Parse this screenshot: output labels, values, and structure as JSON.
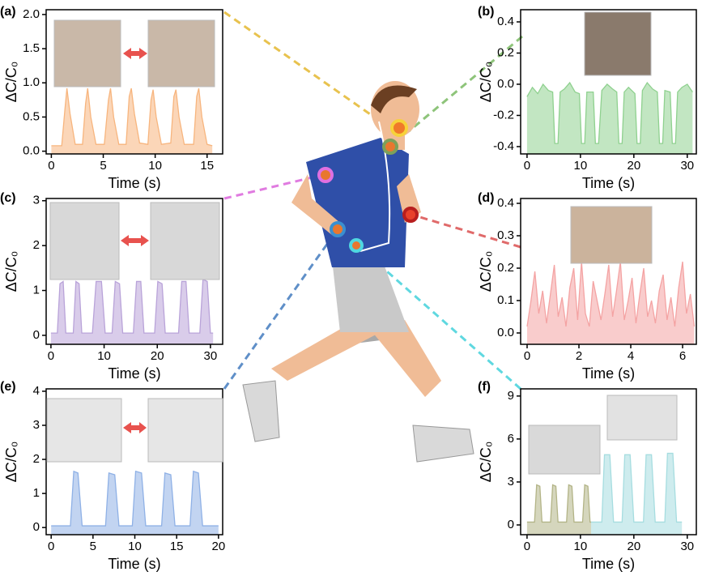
{
  "chart_data": [
    {
      "type": "area",
      "label": "(a)",
      "xlabel": "Time (s)",
      "ylabel": "ΔC/C₀",
      "color": "#f7b57e",
      "x": [
        0,
        1.0,
        1.3,
        1.5,
        1.8,
        2.3,
        3.0,
        3.3,
        3.5,
        3.8,
        4.3,
        5.1,
        5.5,
        5.7,
        6.0,
        6.5,
        7.2,
        7.5,
        7.7,
        8.0,
        8.5,
        9.3,
        9.6,
        9.8,
        10.1,
        10.6,
        11.5,
        11.8,
        12.0,
        12.3,
        12.8,
        13.7,
        14.0,
        14.2,
        14.5,
        15.0,
        15.5
      ],
      "values": [
        0.08,
        0.08,
        0.6,
        0.92,
        0.55,
        0.1,
        0.1,
        0.7,
        0.92,
        0.5,
        0.1,
        0.1,
        0.75,
        0.92,
        0.5,
        0.1,
        0.1,
        0.8,
        0.92,
        0.55,
        0.12,
        0.1,
        0.75,
        0.9,
        0.5,
        0.1,
        0.12,
        0.8,
        0.9,
        0.5,
        0.1,
        0.1,
        0.8,
        0.92,
        0.5,
        0.1,
        0.08
      ],
      "xlim": [
        -0.5,
        16.5
      ],
      "ylim": [
        -0.04,
        2.07
      ],
      "xticks": [
        0,
        5,
        10,
        15
      ],
      "yticks": [
        {
          "value": 0,
          "label": "0.0"
        },
        0.5,
        {
          "value": 1,
          "label": "1.0"
        },
        1.5,
        {
          "value": 2,
          "label": "2.0"
        }
      ]
    },
    {
      "type": "area",
      "label": "(b)",
      "xlabel": "Time (s)",
      "ylabel": "ΔC/C₀",
      "color": "#8fd18f",
      "x": [
        0,
        1,
        2,
        3,
        4,
        4.8,
        5.2,
        5.8,
        6.2,
        7,
        8,
        9,
        9.8,
        10.2,
        10.8,
        11.2,
        12.4,
        12.8,
        13.4,
        14,
        15,
        16,
        16.8,
        17.2,
        17.8,
        18.2,
        19,
        20.2,
        20.6,
        21.2,
        21.6,
        22.5,
        23.5,
        24.4,
        24.8,
        25.4,
        25.8,
        26.8,
        27.2,
        27.8,
        28.2,
        29,
        30,
        31
      ],
      "values": [
        -0.08,
        -0.02,
        -0.06,
        0.0,
        -0.04,
        -0.05,
        -0.38,
        -0.38,
        -0.05,
        -0.03,
        0.01,
        -0.05,
        -0.06,
        -0.38,
        -0.38,
        -0.05,
        -0.05,
        -0.38,
        -0.38,
        -0.04,
        0.0,
        -0.03,
        -0.05,
        -0.38,
        -0.38,
        -0.05,
        -0.02,
        -0.06,
        -0.38,
        -0.38,
        -0.04,
        0.01,
        -0.03,
        -0.05,
        -0.38,
        -0.38,
        -0.04,
        -0.05,
        -0.38,
        -0.38,
        -0.05,
        -0.02,
        0.0,
        -0.05
      ],
      "xlim": [
        -1.2,
        31.7
      ],
      "ylim": [
        -0.447,
        0.478
      ],
      "xticks": [
        0,
        10,
        20,
        30
      ],
      "yticks": [
        -0.4,
        -0.2,
        {
          "value": 0,
          "label": "0.0"
        },
        0.2,
        0.4
      ]
    },
    {
      "type": "area",
      "label": "(c)",
      "xlabel": "Time (s)",
      "ylabel": "ΔC/C₀",
      "color": "#b9a3d9",
      "x": [
        0,
        1.2,
        1.7,
        2.3,
        2.8,
        4.2,
        4.7,
        5.3,
        5.8,
        7.8,
        8.5,
        9.5,
        10.2,
        11.5,
        12.1,
        12.9,
        13.5,
        15.5,
        16.1,
        16.9,
        17.5,
        19.5,
        20.1,
        20.9,
        21.5,
        24,
        24.6,
        25.4,
        26,
        28,
        28.6,
        29.4,
        30,
        30.5
      ],
      "values": [
        0.05,
        0.05,
        1.15,
        1.2,
        0.05,
        0.05,
        1.2,
        1.15,
        0.05,
        0.05,
        1.2,
        1.2,
        0.05,
        0.05,
        1.2,
        1.15,
        0.05,
        0.05,
        1.2,
        1.2,
        0.05,
        0.05,
        1.2,
        1.15,
        0.05,
        0.05,
        1.2,
        1.2,
        0.05,
        0.05,
        1.25,
        1.2,
        0.05,
        0.05
      ],
      "xlim": [
        -0.9,
        32.3
      ],
      "ylim": [
        -0.2,
        3.05
      ],
      "xticks": [
        0,
        10,
        20,
        30
      ],
      "yticks": [
        0,
        1,
        2,
        3
      ]
    },
    {
      "type": "area",
      "label": "(d)",
      "xlabel": "Time (s)",
      "ylabel": "ΔC/C₀",
      "color": "#f4a3a3",
      "x": [
        0,
        0.15,
        0.3,
        0.45,
        0.6,
        0.75,
        0.9,
        1.05,
        1.2,
        1.35,
        1.5,
        1.65,
        1.8,
        1.95,
        2.1,
        2.25,
        2.4,
        2.55,
        2.7,
        2.85,
        3.0,
        3.15,
        3.3,
        3.45,
        3.6,
        3.75,
        3.9,
        4.05,
        4.2,
        4.35,
        4.5,
        4.65,
        4.8,
        4.95,
        5.1,
        5.25,
        5.4,
        5.55,
        5.7,
        5.85,
        6.0,
        6.15,
        6.3,
        6.45
      ],
      "values": [
        0.02,
        0.1,
        0.19,
        0.06,
        0.13,
        0.03,
        0.12,
        0.21,
        0.05,
        0.11,
        0.02,
        0.14,
        0.2,
        0.04,
        0.22,
        0.06,
        0.02,
        0.16,
        0.1,
        0.04,
        0.12,
        0.21,
        0.05,
        0.13,
        0.22,
        0.04,
        0.1,
        0.17,
        0.03,
        0.12,
        0.2,
        0.05,
        0.1,
        0.03,
        0.13,
        0.18,
        0.04,
        0.11,
        0.02,
        0.14,
        0.22,
        0.06,
        0.12,
        0.02
      ],
      "xlim": [
        -0.25,
        6.53
      ],
      "ylim": [
        -0.035,
        0.415
      ],
      "xticks": [
        0,
        2,
        4,
        6
      ],
      "yticks": [
        {
          "value": 0,
          "label": "0.0"
        },
        0.1,
        0.2,
        0.3,
        0.4
      ]
    },
    {
      "type": "area",
      "label": "(e)",
      "xlabel": "Time (s)",
      "ylabel": "ΔC/C₀",
      "color": "#8fb1e6",
      "x": [
        0,
        2.3,
        2.7,
        3.2,
        3.7,
        6.5,
        6.9,
        7.6,
        8.1,
        9.7,
        10.1,
        10.8,
        11.3,
        13.2,
        13.6,
        14.3,
        14.8,
        16.6,
        17.0,
        17.6,
        18.1,
        20
      ],
      "values": [
        0.05,
        0.05,
        1.65,
        1.6,
        0.05,
        0.05,
        1.6,
        1.55,
        0.05,
        0.05,
        1.65,
        1.6,
        0.05,
        0.05,
        1.6,
        1.55,
        0.05,
        0.05,
        1.65,
        1.6,
        0.05,
        0.05
      ],
      "xlim": [
        -0.6,
        20.5
      ],
      "ylim": [
        -0.21,
        4.07
      ],
      "xticks": [
        0,
        5,
        10,
        15,
        20
      ],
      "yticks": [
        0,
        1,
        2,
        3,
        4
      ]
    },
    {
      "type": "area",
      "label": "(f)",
      "xlabel": "Time (s)",
      "ylabel": "ΔC/C₀",
      "series": [
        {
          "color": "#b3b487",
          "x": [
            0,
            1.4,
            1.8,
            2.4,
            2.8,
            4.4,
            4.8,
            5.4,
            5.8,
            7.4,
            7.8,
            8.4,
            8.8,
            10.4,
            10.8,
            11.4,
            11.8,
            12
          ],
          "values": [
            0.2,
            0.2,
            2.8,
            2.7,
            0.2,
            0.2,
            2.8,
            2.7,
            0.2,
            0.2,
            2.8,
            2.7,
            0.2,
            0.2,
            2.8,
            2.7,
            0.2,
            0.2
          ]
        },
        {
          "color": "#a6dde0",
          "x": [
            12,
            14,
            14.5,
            15.5,
            16.2,
            17.8,
            18.3,
            19.3,
            20,
            21.8,
            22.3,
            23.3,
            24,
            25.8,
            26.3,
            27.3,
            28,
            29
          ],
          "values": [
            0.2,
            0.2,
            4.9,
            4.9,
            0.2,
            0.2,
            4.9,
            4.9,
            0.2,
            0.2,
            4.9,
            4.9,
            0.2,
            0.2,
            5.0,
            5.0,
            0.2,
            0.2
          ]
        }
      ],
      "xlim": [
        -1.2,
        31.7
      ],
      "ylim": [
        -0.68,
        9.5
      ],
      "xticks": [
        0,
        10,
        20,
        30
      ],
      "yticks": [
        0,
        3,
        6,
        9
      ]
    }
  ]
}
